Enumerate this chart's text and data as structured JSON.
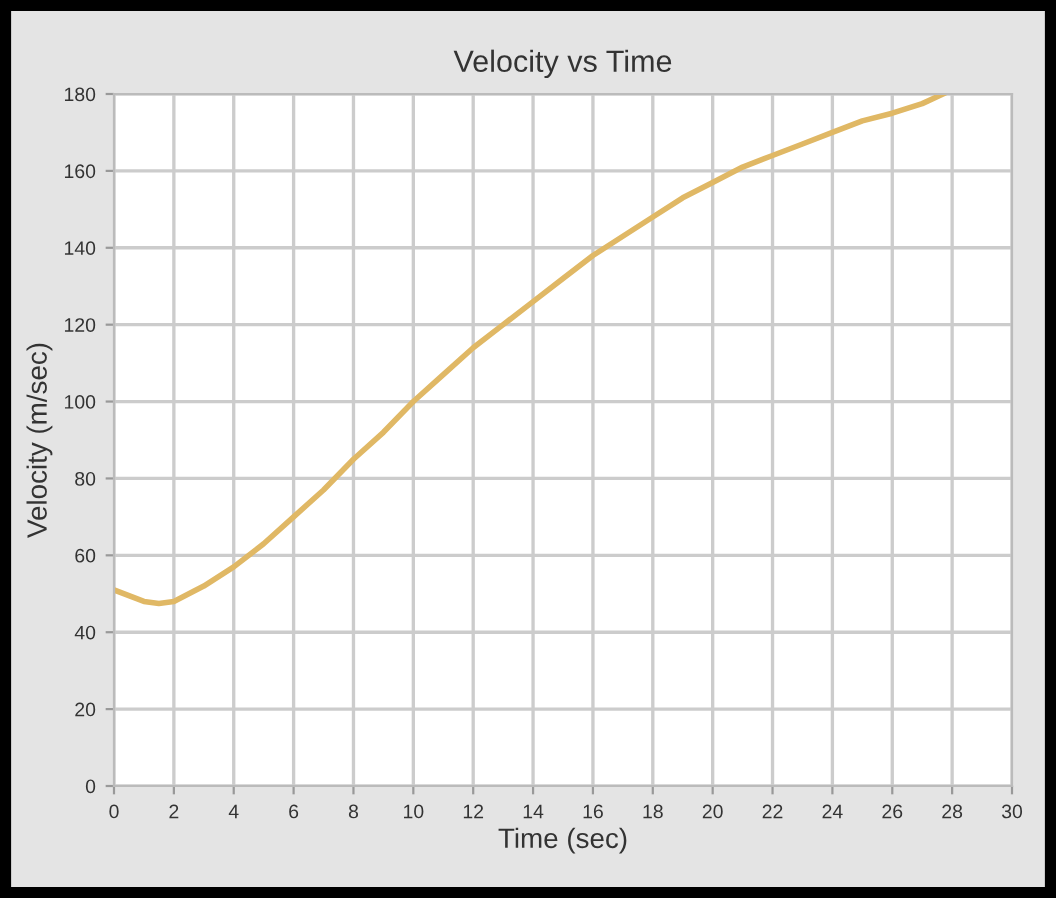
{
  "chart_data": {
    "type": "line",
    "title": "Velocity vs Time",
    "xlabel": "Time (sec)",
    "ylabel": "Velocity (m/sec)",
    "x": [
      0,
      1,
      1.5,
      2,
      3,
      4,
      5,
      6,
      7,
      8,
      9,
      10,
      11,
      12,
      13,
      14,
      15,
      16,
      17,
      18,
      19,
      20,
      21,
      22,
      23,
      24,
      25,
      26,
      27,
      27.7
    ],
    "series": [
      {
        "color": "#e0b865",
        "values": [
          51,
          48,
          47.5,
          48,
          52,
          57,
          63,
          70,
          77,
          85,
          92,
          100,
          107,
          114,
          120,
          126,
          132,
          138,
          143,
          148,
          153,
          157,
          161,
          164,
          167,
          170,
          173,
          175,
          177.5,
          180
        ]
      }
    ],
    "xlim": [
      0,
      30
    ],
    "xticks": [
      0,
      2,
      4,
      6,
      8,
      10,
      12,
      14,
      16,
      18,
      20,
      22,
      24,
      26,
      28,
      30
    ],
    "ylim": [
      0,
      180
    ],
    "yticks": [
      0,
      20,
      40,
      60,
      80,
      100,
      120,
      140,
      160,
      180
    ],
    "grid": true,
    "marker": "none",
    "line_style": "solid"
  }
}
